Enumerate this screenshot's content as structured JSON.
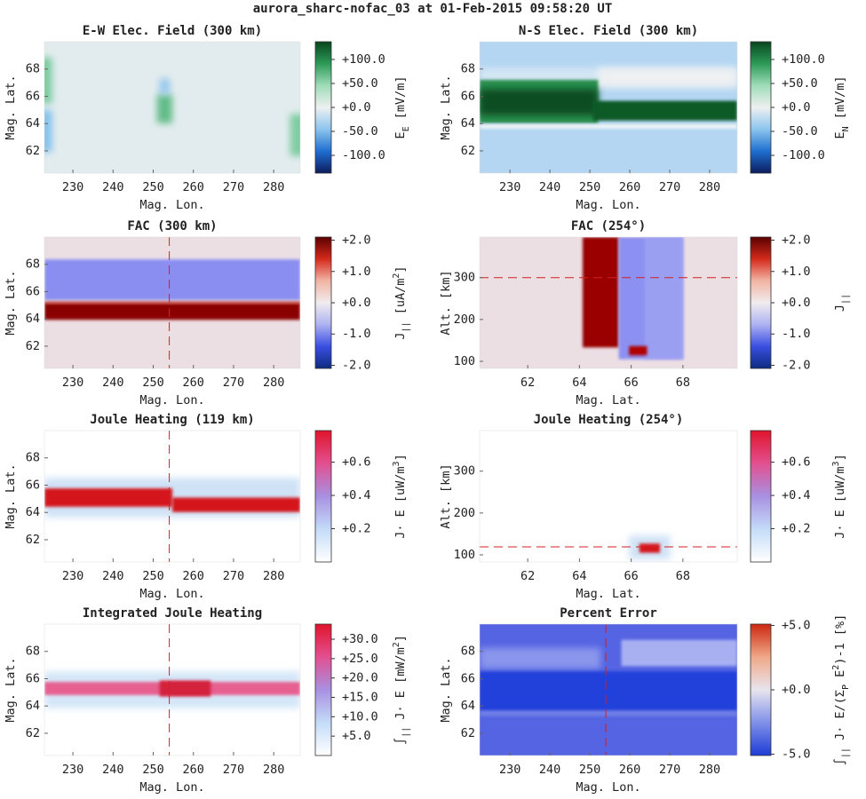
{
  "title": "aurora_sharc-nofac_03 at 01-Feb-2015 09:58:20 UT",
  "chart_data": [
    {
      "type": "heatmap",
      "title": "E-W Elec. Field (300 km)",
      "xlabel": "Mag. Lon.",
      "ylabel": "Mag. Lat.",
      "xlim": [
        222.9,
        286.6
      ],
      "xticks": [
        230,
        240,
        250,
        260,
        270,
        280
      ],
      "ylim": [
        60.37,
        70.0
      ],
      "yticks": [
        62,
        64,
        66,
        68
      ],
      "clim": [
        -137,
        137
      ],
      "cticks": [
        {
          "value": 100,
          "label": "+100.0"
        },
        {
          "value": 50,
          "label": "+50.0"
        },
        {
          "value": 0,
          "label": "+0.0"
        },
        {
          "value": -50,
          "label": "-50.0"
        },
        {
          "value": -100,
          "label": "-100.0"
        }
      ],
      "cbar_label": [
        {
          "text": "E"
        },
        {
          "text": "E",
          "sub": true
        },
        {
          "text": " [mV/m]"
        }
      ]
    },
    {
      "type": "heatmap",
      "title": "N-S Elec. Field (300 km)",
      "xlabel": "Mag. Lon.",
      "ylabel": "Mag. Lat.",
      "xlim": [
        222.4,
        286.9
      ],
      "xticks": [
        230,
        240,
        250,
        260,
        270,
        280
      ],
      "ylim": [
        60.37,
        70.0
      ],
      "yticks": [
        62,
        64,
        66,
        68
      ],
      "clim": [
        -137,
        137
      ],
      "cticks": [
        {
          "value": 100,
          "label": "+100.0"
        },
        {
          "value": 50,
          "label": "+50.0"
        },
        {
          "value": 0,
          "label": "+0.0"
        },
        {
          "value": -50,
          "label": "-50.0"
        },
        {
          "value": -100,
          "label": "-100.0"
        }
      ],
      "cbar_label": [
        {
          "text": "E"
        },
        {
          "text": "N",
          "sub": true
        },
        {
          "text": " [mV/m]"
        }
      ]
    },
    {
      "type": "heatmap",
      "title": "FAC (300 km)",
      "xlabel": "Mag. Lon.",
      "ylabel": "Mag. Lat.",
      "xlim": [
        222.9,
        286.6
      ],
      "xticks": [
        230,
        240,
        250,
        260,
        270,
        280
      ],
      "ylim": [
        60.37,
        70.0
      ],
      "yticks": [
        62,
        64,
        66,
        68
      ],
      "clim": [
        -2.1,
        2.1
      ],
      "cticks": [
        {
          "value": 2,
          "label": "+2.0"
        },
        {
          "value": 1,
          "label": "+1.0"
        },
        {
          "value": 0,
          "label": "+0.0"
        },
        {
          "value": -1,
          "label": "-1.0"
        },
        {
          "value": -2,
          "label": "-2.0"
        }
      ],
      "cbar_label": [
        {
          "text": "J"
        },
        {
          "text": "||",
          "sub": true
        },
        {
          "text": " [uA/m"
        },
        {
          "text": "2",
          "sup": true
        },
        {
          "text": "]"
        }
      ],
      "vline": 254
    },
    {
      "type": "heatmap",
      "title": "FAC (254°)",
      "xlabel": "Mag. Lat.",
      "ylabel": "Alt. [km]",
      "xlim": [
        60.14,
        70.1
      ],
      "xticks": [
        62,
        64,
        66,
        68
      ],
      "ylim": [
        83,
        397
      ],
      "yticks": [
        100,
        200,
        300
      ],
      "clim": [
        -2.1,
        2.1
      ],
      "cticks": [
        {
          "value": 2,
          "label": "+2.0"
        },
        {
          "value": 1,
          "label": "+1.0"
        },
        {
          "value": 0,
          "label": "+0.0"
        },
        {
          "value": -1,
          "label": "-1.0"
        },
        {
          "value": -2,
          "label": "-2.0"
        }
      ],
      "cbar_label": [
        {
          "text": "J"
        },
        {
          "text": "||",
          "sub": true
        }
      ],
      "hline": 300
    },
    {
      "type": "heatmap",
      "title": "Joule Heating (119 km)",
      "xlabel": "Mag. Lon.",
      "ylabel": "Mag. Lat.",
      "xlim": [
        222.9,
        286.6
      ],
      "xticks": [
        230,
        240,
        250,
        260,
        270,
        280
      ],
      "ylim": [
        60.37,
        70.0
      ],
      "yticks": [
        62,
        64,
        66,
        68
      ],
      "clim": [
        0,
        0.79
      ],
      "cticks": [
        {
          "value": 0.6,
          "label": "+0.6"
        },
        {
          "value": 0.4,
          "label": "+0.4"
        },
        {
          "value": 0.2,
          "label": "+0.2"
        }
      ],
      "cbar_label": [
        {
          "text": "J· E [uW/m"
        },
        {
          "text": "3",
          "sup": true
        },
        {
          "text": "]"
        }
      ],
      "vline": 254
    },
    {
      "type": "heatmap",
      "title": "Joule Heating (254°)",
      "xlabel": "Mag. Lat.",
      "ylabel": "Alt. [km]",
      "xlim": [
        60.14,
        70.1
      ],
      "xticks": [
        62,
        64,
        66,
        68
      ],
      "ylim": [
        83,
        397
      ],
      "yticks": [
        100,
        200,
        300
      ],
      "clim": [
        0,
        0.79
      ],
      "cticks": [
        {
          "value": 0.6,
          "label": "+0.6"
        },
        {
          "value": 0.4,
          "label": "+0.4"
        },
        {
          "value": 0.2,
          "label": "+0.2"
        }
      ],
      "cbar_label": [
        {
          "text": "J· E [uW/m"
        },
        {
          "text": "3",
          "sup": true
        },
        {
          "text": "]"
        }
      ],
      "hline": 119
    },
    {
      "type": "heatmap",
      "title": "Integrated Joule Heating",
      "xlabel": "Mag. Lon.",
      "ylabel": "Mag. Lat.",
      "xlim": [
        222.9,
        286.6
      ],
      "xticks": [
        230,
        240,
        250,
        260,
        270,
        280
      ],
      "ylim": [
        60.37,
        70.0
      ],
      "yticks": [
        62,
        64,
        66,
        68
      ],
      "clim": [
        0,
        33.9
      ],
      "cticks": [
        {
          "value": 30,
          "label": "+30.0"
        },
        {
          "value": 25,
          "label": "+25.0"
        },
        {
          "value": 20,
          "label": "+20.0"
        },
        {
          "value": 15,
          "label": "+15.0"
        },
        {
          "value": 10,
          "label": "+10.0"
        },
        {
          "value": 5,
          "label": "+5.0"
        }
      ],
      "cbar_label": [
        {
          "text": "∫"
        },
        {
          "text": "||",
          "sub": true
        },
        {
          "text": " J· E [mW/m"
        },
        {
          "text": "2",
          "sup": true
        },
        {
          "text": "]"
        }
      ],
      "vline": 254
    },
    {
      "type": "heatmap",
      "title": "Percent Error",
      "xlabel": "Mag. Lon.",
      "ylabel": "Mag. Lat.",
      "xlim": [
        222.4,
        286.9
      ],
      "xticks": [
        230,
        240,
        250,
        260,
        270,
        280
      ],
      "ylim": [
        60.37,
        70.0
      ],
      "yticks": [
        62,
        64,
        66,
        68
      ],
      "clim": [
        -5.1,
        5.1
      ],
      "cticks": [
        {
          "value": 5,
          "label": "+5.0"
        },
        {
          "value": 0,
          "label": "+0.0"
        },
        {
          "value": -5,
          "label": "-5.0"
        }
      ],
      "cbar_label": [
        {
          "text": "∫"
        },
        {
          "text": "||",
          "sub": true
        },
        {
          "text": " J· E/(Σ"
        },
        {
          "text": "P",
          "sub": true
        },
        {
          "text": " E"
        },
        {
          "text": "2",
          "sup": true
        },
        {
          "text": ")-1 [%]"
        }
      ],
      "vline": 254
    }
  ]
}
